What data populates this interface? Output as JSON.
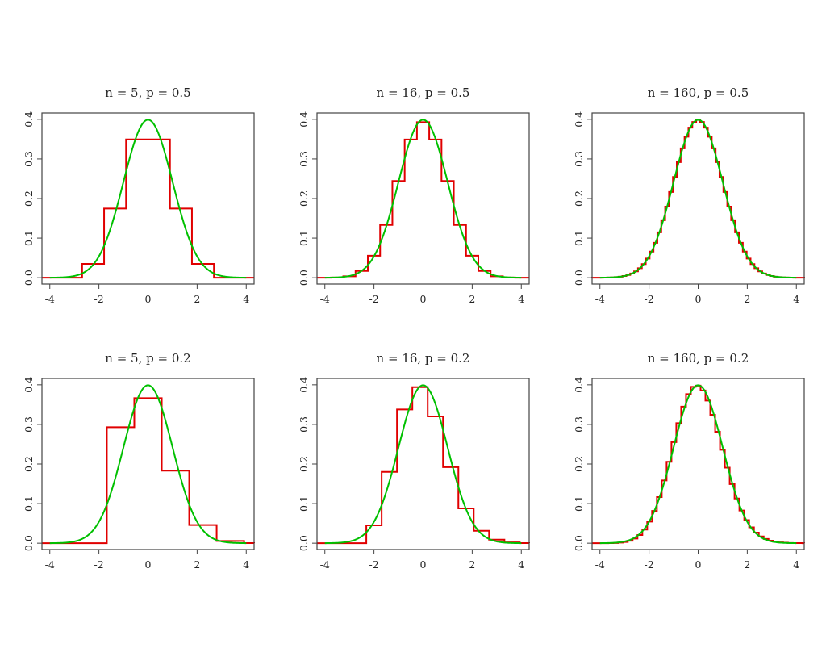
{
  "chart_data": [
    {
      "type": "line",
      "title": "n = 5, p = 0.5",
      "n": 5,
      "p": 0.5,
      "xlim": [
        -4.32,
        4.32
      ],
      "ylim": [
        -0.016,
        0.416
      ],
      "xticks": [
        "-4",
        "-2",
        "0",
        "2",
        "4"
      ],
      "yticks": [
        "0.0",
        "0.1",
        "0.2",
        "0.3",
        "0.4"
      ],
      "grid": false,
      "series": [
        {
          "kind": "step",
          "description": "standardized binomial pmf times sd",
          "color": "#e00000"
        },
        {
          "kind": "normal-density",
          "x_range": [
            -4,
            4
          ],
          "color": "#00c000"
        }
      ]
    },
    {
      "type": "line",
      "title": "n = 16, p = 0.5",
      "n": 16,
      "p": 0.5,
      "xlim": [
        -4.32,
        4.32
      ],
      "ylim": [
        -0.016,
        0.416
      ],
      "xticks": [
        "-4",
        "-2",
        "0",
        "2",
        "4"
      ],
      "yticks": [
        "0.0",
        "0.1",
        "0.2",
        "0.3",
        "0.4"
      ],
      "grid": false,
      "series": [
        {
          "kind": "step",
          "color": "#e00000"
        },
        {
          "kind": "normal-density",
          "x_range": [
            -4,
            4
          ],
          "color": "#00c000"
        }
      ]
    },
    {
      "type": "line",
      "title": "n = 160, p = 0.5",
      "n": 160,
      "p": 0.5,
      "xlim": [
        -4.32,
        4.32
      ],
      "ylim": [
        -0.016,
        0.416
      ],
      "xticks": [
        "-4",
        "-2",
        "0",
        "2",
        "4"
      ],
      "yticks": [
        "0.0",
        "0.1",
        "0.2",
        "0.3",
        "0.4"
      ],
      "grid": false,
      "series": [
        {
          "kind": "step",
          "color": "#e00000"
        },
        {
          "kind": "normal-density",
          "x_range": [
            -4,
            4
          ],
          "color": "#00c000"
        }
      ]
    },
    {
      "type": "line",
      "title": "n = 5, p = 0.2",
      "n": 5,
      "p": 0.2,
      "xlim": [
        -4.32,
        4.32
      ],
      "ylim": [
        -0.016,
        0.416
      ],
      "xticks": [
        "-4",
        "-2",
        "0",
        "2",
        "4"
      ],
      "yticks": [
        "0.0",
        "0.1",
        "0.2",
        "0.3",
        "0.4"
      ],
      "grid": false,
      "series": [
        {
          "kind": "step",
          "color": "#e00000"
        },
        {
          "kind": "normal-density",
          "x_range": [
            -4,
            4
          ],
          "color": "#00c000"
        }
      ]
    },
    {
      "type": "line",
      "title": "n = 16, p = 0.2",
      "n": 16,
      "p": 0.2,
      "xlim": [
        -4.32,
        4.32
      ],
      "ylim": [
        -0.016,
        0.416
      ],
      "xticks": [
        "-4",
        "-2",
        "0",
        "2",
        "4"
      ],
      "yticks": [
        "0.0",
        "0.1",
        "0.2",
        "0.3",
        "0.4"
      ],
      "grid": false,
      "series": [
        {
          "kind": "step",
          "color": "#e00000"
        },
        {
          "kind": "normal-density",
          "x_range": [
            -4,
            4
          ],
          "color": "#00c000"
        }
      ]
    },
    {
      "type": "line",
      "title": "n = 160, p = 0.2",
      "n": 160,
      "p": 0.2,
      "xlim": [
        -4.32,
        4.32
      ],
      "ylim": [
        -0.016,
        0.416
      ],
      "xticks": [
        "-4",
        "-2",
        "0",
        "2",
        "4"
      ],
      "yticks": [
        "0.0",
        "0.1",
        "0.2",
        "0.3",
        "0.4"
      ],
      "grid": false,
      "series": [
        {
          "kind": "step",
          "color": "#e00000"
        },
        {
          "kind": "normal-density",
          "x_range": [
            -4,
            4
          ],
          "color": "#00c000"
        }
      ]
    }
  ]
}
